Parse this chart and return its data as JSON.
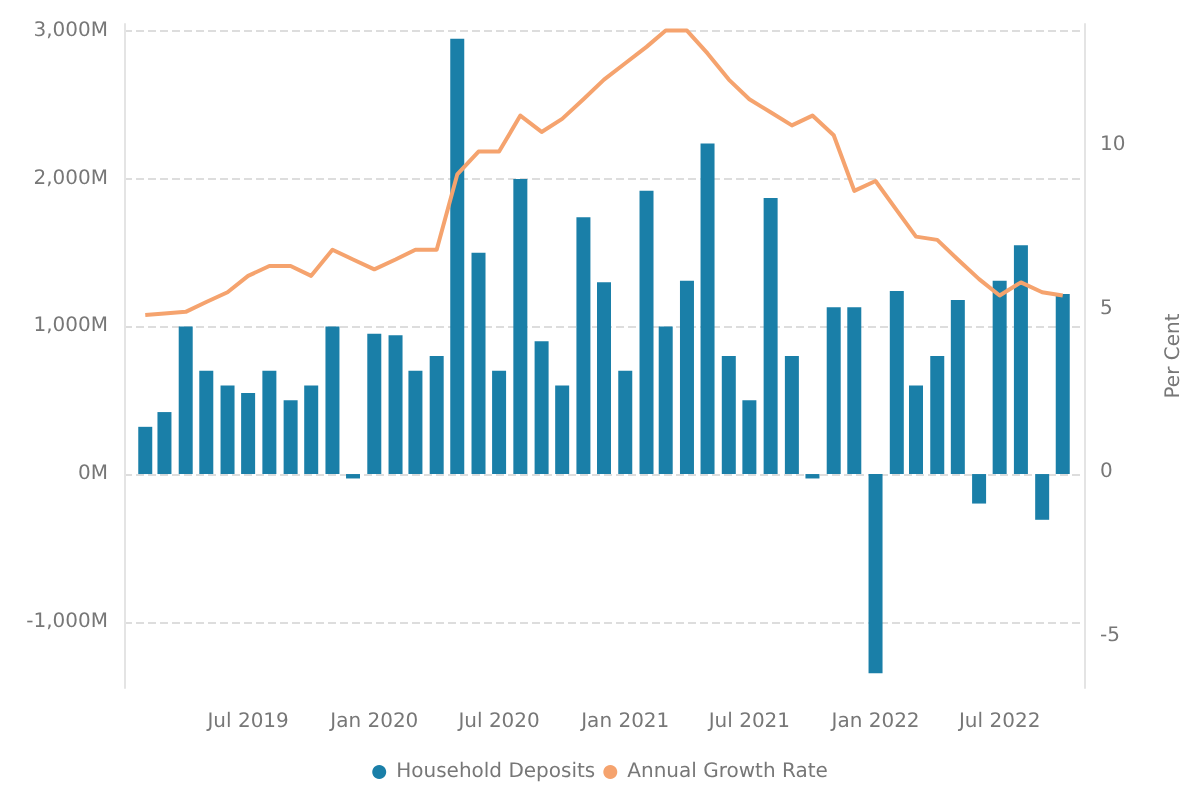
{
  "chart_data": {
    "type": "bar",
    "x": [
      "2019-02",
      "2019-03",
      "2019-04",
      "2019-05",
      "2019-06",
      "2019-07",
      "2019-08",
      "2019-09",
      "2019-10",
      "2019-11",
      "2019-12",
      "2020-01",
      "2020-02",
      "2020-03",
      "2020-04",
      "2020-05",
      "2020-06",
      "2020-07",
      "2020-08",
      "2020-09",
      "2020-10",
      "2020-11",
      "2020-12",
      "2021-01",
      "2021-02",
      "2021-03",
      "2021-04",
      "2021-05",
      "2021-06",
      "2021-07",
      "2021-08",
      "2021-09",
      "2021-10",
      "2021-11",
      "2021-12",
      "2022-01",
      "2022-02",
      "2022-03",
      "2022-04",
      "2022-05",
      "2022-06",
      "2022-07",
      "2022-08",
      "2022-09",
      "2022-10"
    ],
    "series": [
      {
        "name": "Household Deposits",
        "color": "#1a7fa8",
        "values": [
          320,
          420,
          1000,
          700,
          600,
          550,
          700,
          500,
          600,
          1000,
          -30,
          950,
          940,
          700,
          800,
          2950,
          1500,
          700,
          2000,
          900,
          600,
          1740,
          1300,
          700,
          1920,
          1000,
          1310,
          2240,
          800,
          500,
          1870,
          800,
          -30,
          1130,
          1130,
          -1350,
          1240,
          600,
          800,
          1180,
          -200,
          1310,
          1550,
          -310,
          1220
        ]
      },
      {
        "name": "Annual Growth Rate",
        "type": "line",
        "axis": "y2",
        "color": "#f5a36e",
        "values": [
          4.8,
          4.85,
          4.9,
          5.2,
          5.5,
          6.0,
          6.3,
          6.3,
          6.0,
          6.8,
          6.5,
          6.2,
          6.5,
          6.8,
          6.8,
          9.1,
          9.8,
          9.8,
          10.9,
          10.4,
          10.8,
          11.4,
          12.0,
          12.5,
          13.0,
          13.5,
          13.5,
          12.8,
          12.0,
          11.4,
          11.0,
          10.6,
          10.9,
          10.3,
          8.6,
          8.9,
          8.0,
          7.2,
          7.1,
          6.5,
          5.9,
          5.4,
          5.8,
          5.5,
          5.4
        ]
      }
    ],
    "y2label": "Per Cent",
    "xlim": [
      "2019-01",
      "2022-11"
    ],
    "xticks": [
      {
        "value": "2019-07",
        "label": "Jul 2019"
      },
      {
        "value": "2020-01",
        "label": "Jan 2020"
      },
      {
        "value": "2020-07",
        "label": "Jul 2020"
      },
      {
        "value": "2021-01",
        "label": "Jan 2021"
      },
      {
        "value": "2021-07",
        "label": "Jul 2021"
      },
      {
        "value": "2022-01",
        "label": "Jan 2022"
      },
      {
        "value": "2022-07",
        "label": "Jul 2022"
      }
    ],
    "ylim": [
      -1450,
      3050
    ],
    "yticks": [
      {
        "value": -1000,
        "label": "-1,000M"
      },
      {
        "value": 0,
        "label": "0M"
      },
      {
        "value": 1000,
        "label": "1,000M"
      },
      {
        "value": 2000,
        "label": "2,000M"
      },
      {
        "value": 3000,
        "label": "3,000M"
      }
    ],
    "y2lim": [
      -6.6,
      13.7
    ],
    "y2ticks": [
      -5,
      0,
      5,
      10
    ],
    "grid": "y",
    "legend": "bottom",
    "marker": "none"
  }
}
